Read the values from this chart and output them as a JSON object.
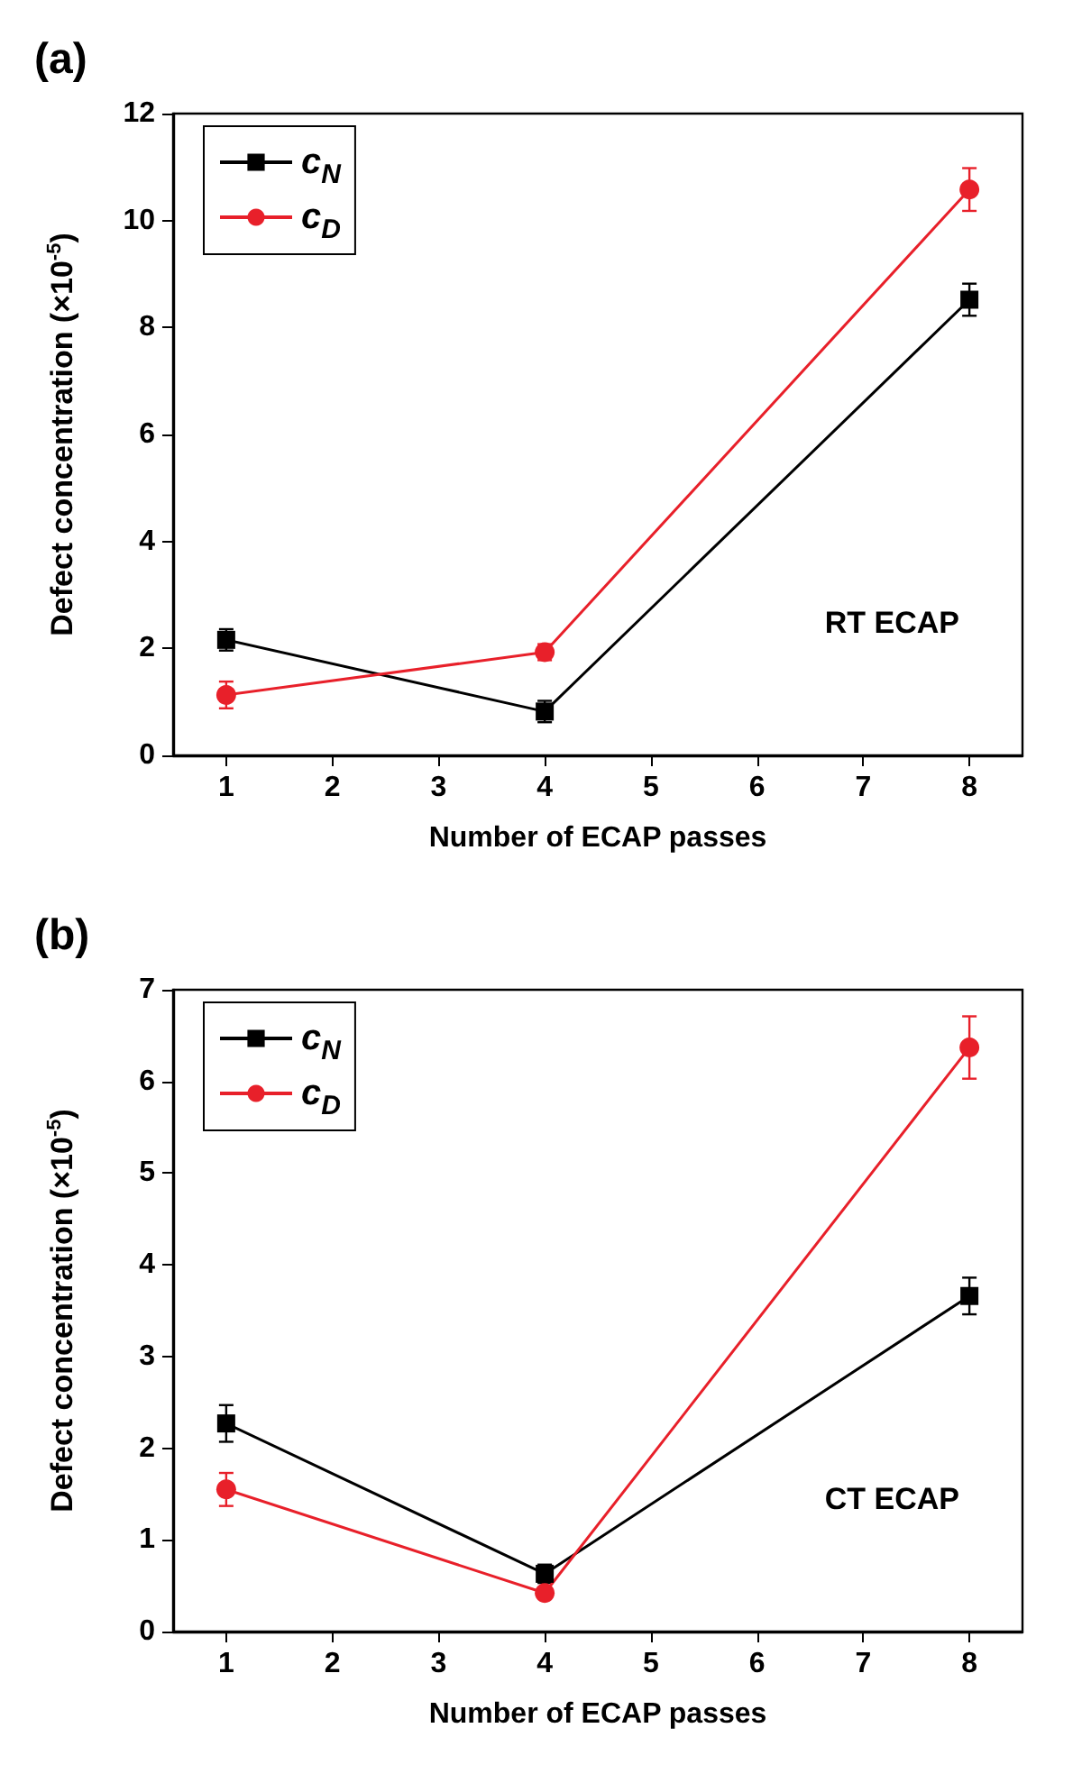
{
  "chart_data": [
    {
      "type": "line",
      "title": "(a)",
      "xlabel": "Number of ECAP passes",
      "ylabel": "Defect concentration (×10$^{-5}$)",
      "x": [
        1,
        4,
        8
      ],
      "xlim": [
        0.5,
        8.5
      ],
      "xticks": [
        1,
        2,
        3,
        4,
        5,
        6,
        7,
        8
      ],
      "ylim": [
        0,
        12
      ],
      "yticks": [
        0,
        2,
        4,
        6,
        8,
        10,
        12
      ],
      "legend": "top left",
      "grid": false,
      "annotations": [
        "RT ECAP"
      ],
      "series": [
        {
          "name": "c$_{N}$",
          "color": "#000000",
          "marker": "square",
          "values": [
            2.16,
            0.82,
            8.52
          ],
          "errors": [
            0.2,
            0.2,
            0.3
          ]
        },
        {
          "name": "c$_{D}$",
          "color": "#e8202a",
          "marker": "circle",
          "values": [
            1.13,
            1.93,
            10.58
          ],
          "errors": [
            0.25,
            0.15,
            0.4
          ]
        }
      ]
    },
    {
      "type": "line",
      "title": "(b)",
      "xlabel": "Number of ECAP passes",
      "ylabel": "Defect concentration (×10$^{-5}$)",
      "x": [
        1,
        4,
        8
      ],
      "xlim": [
        0.5,
        8.5
      ],
      "xticks": [
        1,
        2,
        3,
        4,
        5,
        6,
        7,
        8
      ],
      "ylim": [
        0,
        7
      ],
      "yticks": [
        0,
        1,
        2,
        3,
        4,
        5,
        6,
        7
      ],
      "legend": "top left",
      "grid": false,
      "annotations": [
        "CT ECAP"
      ],
      "series": [
        {
          "name": "c$_{N}$",
          "color": "#000000",
          "marker": "square",
          "values": [
            2.27,
            0.63,
            3.66
          ],
          "errors": [
            0.2,
            0.1,
            0.2
          ]
        },
        {
          "name": "c$_{D}$",
          "color": "#e8202a",
          "marker": "circle",
          "values": [
            1.55,
            0.42,
            6.37
          ],
          "errors": [
            0.18,
            0.05,
            0.34
          ]
        }
      ]
    }
  ]
}
